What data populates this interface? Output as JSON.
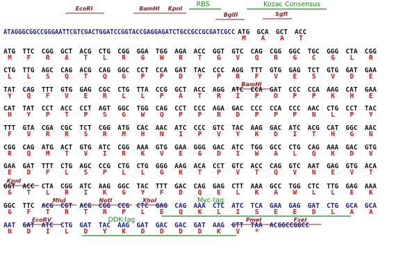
{
  "lines": [
    {
      "leader": "ATAGGGCGGCCGGGAATTCGTCGACTGGATCCGGTACCGAGGAGATCTGCCGCCGCGATCGCC",
      "insert": [
        "ATG",
        "GCA",
        "GCT",
        "ACC"
      ],
      "protein": [
        "M",
        "A",
        "A",
        "T"
      ],
      "annotations": [
        "EcoRI",
        "BamHI",
        "KpnI",
        "RBS",
        "BglII",
        "Kozac Consensus",
        "SgfI"
      ]
    },
    {
      "insert": [
        "ATG",
        "TTC",
        "CGG",
        "GCT",
        "ACG",
        "CTG",
        "CGG",
        "GGA",
        "TGG",
        "AGA",
        "ACC",
        "GGT",
        "GTC",
        "CAG",
        "CGG",
        "GGC",
        "TGC",
        "GGG",
        "CTA",
        "CGG"
      ],
      "protein": [
        "M",
        "F",
        "R",
        "A",
        "T",
        "L",
        "R",
        "G",
        "W",
        "R",
        "T",
        "G",
        "V",
        "Q",
        "R",
        "G",
        "C",
        "G",
        "L",
        "R"
      ]
    },
    {
      "insert": [
        "CTG",
        "TTG",
        "AGC",
        "CAG",
        "ACG",
        "CAG",
        "GGC",
        "CCT",
        "CCA",
        "GAT",
        "TAC",
        "CCC",
        "AGG",
        "TTT",
        "GTG",
        "GAG",
        "TCT",
        "GTG",
        "GAT",
        "GAA"
      ],
      "protein": [
        "L",
        "L",
        "S",
        "Q",
        "T",
        "Q",
        "G",
        "P",
        "P",
        "D",
        "Y",
        "P",
        "R",
        "F",
        "V",
        "E",
        "S",
        "V",
        "D",
        "E"
      ]
    },
    {
      "insert": [
        "TAT",
        "CAG",
        "TTT",
        "GTG",
        "GAG",
        "CGC",
        "CTG",
        "TTA",
        "CCG",
        "GCT",
        "ACC",
        "AGG",
        "ATC",
        "CCA",
        "GAT",
        "CCC",
        "CCA",
        "AAG",
        "CAT",
        "GAA"
      ],
      "protein": [
        "Y",
        "Q",
        "F",
        "V",
        "E",
        "R",
        "L",
        "L",
        "P",
        "A",
        "T",
        "R",
        "I",
        "P",
        "D",
        "P",
        "P",
        "K",
        "H",
        "E"
      ],
      "annotations": [
        "BamHI"
      ]
    },
    {
      "insert": [
        "CAT",
        "TAT",
        "CCT",
        "ACC",
        "CCT",
        "AGT",
        "GGC",
        "TGG",
        "CAG",
        "CCT",
        "CCC",
        "AGA",
        "GAC",
        "CCC",
        "CCA",
        "CCC",
        "AAC",
        "CTG",
        "CCT",
        "TAC"
      ],
      "protein": [
        "H",
        "Y",
        "P",
        "T",
        "P",
        "S",
        "G",
        "W",
        "Q",
        "P",
        "P",
        "R",
        "D",
        "P",
        "P",
        "P",
        "N",
        "L",
        "P",
        "Y"
      ]
    },
    {
      "insert": [
        "TTT",
        "GTA",
        "CGA",
        "CGC",
        "TCT",
        "CGG",
        "ATG",
        "CAC",
        "AAC",
        "ATC",
        "CCC",
        "GTC",
        "TAC",
        "AAG",
        "GAC",
        "ATC",
        "ACG",
        "CAT",
        "GGC",
        "AAC"
      ],
      "protein": [
        "F",
        "V",
        "R",
        "R",
        "S",
        "R",
        "M",
        "H",
        "N",
        "I",
        "P",
        "V",
        "Y",
        "K",
        "D",
        "I",
        "T",
        "H",
        "G",
        "N"
      ]
    },
    {
      "insert": [
        "CGG",
        "CAG",
        "ATG",
        "ACT",
        "GTG",
        "ATC",
        "CGG",
        "AAA",
        "GTG",
        "GAA",
        "GGG",
        "GAC",
        "ATC",
        "TGG",
        "GCC",
        "CTG",
        "CAG",
        "AAA",
        "GAC",
        "GTG"
      ],
      "protein": [
        "R",
        "Q",
        "M",
        "T",
        "V",
        "I",
        "R",
        "K",
        "V",
        "E",
        "G",
        "D",
        "I",
        "W",
        "A",
        "L",
        "Q",
        "K",
        "D",
        "V"
      ]
    },
    {
      "insert": [
        "GAA",
        "GAT",
        "TTT",
        "CTG",
        "AGC",
        "CCG",
        "CTG",
        "CTG",
        "GGG",
        "AAG",
        "ACA",
        "CCT",
        "GTC",
        "ACC",
        "CAG",
        "GTC",
        "AAT",
        "GAG",
        "GTG",
        "ACA"
      ],
      "protein": [
        "E",
        "D",
        "F",
        "L",
        "S",
        "P",
        "L",
        "L",
        "G",
        "K",
        "T",
        "P",
        "V",
        "T",
        "Q",
        "V",
        "N",
        "E",
        "V",
        "T"
      ]
    },
    {
      "insert": [
        "GGT",
        "ACC",
        "CTA",
        "CGG",
        "ATC",
        "AAG",
        "GGC",
        "TAC",
        "TTT",
        "GAC",
        "CAG",
        "GAG",
        "CTT",
        "AAA",
        "GCC",
        "TGG",
        "CTC",
        "TTG",
        "GAG",
        "AAA"
      ],
      "protein": [
        "G",
        "T",
        "L",
        "R",
        "I",
        "K",
        "G",
        "Y",
        "F",
        "D",
        "Q",
        "E",
        "L",
        "K",
        "A",
        "W",
        "L",
        "L",
        "E",
        "K"
      ],
      "annotations": [
        "KpnI"
      ]
    },
    {
      "insert": [
        "GGC",
        "TTC"
      ],
      "vector": [
        "ACG",
        "CGT",
        "ACG",
        "CGG",
        "CCG",
        "CTC",
        "GAG",
        "CAG",
        "AAA",
        "CTC",
        "ATC",
        "TCA",
        "GAA",
        "GAG",
        "GAT",
        "CTG",
        "GCA",
        "GCA"
      ],
      "protein": [
        "G",
        "F",
        "T",
        "R",
        "T",
        "R",
        "P",
        "L",
        "E",
        "Q",
        "K",
        "L",
        "I",
        "S",
        "E",
        "E",
        "D",
        "L",
        "A",
        "A"
      ],
      "annotations": [
        "MluI",
        "NotI",
        "XhoI",
        "Myc-tag"
      ]
    },
    {
      "vector": [
        "AAT",
        "GAT",
        "ATC",
        "CTG",
        "GAT",
        "TAC",
        "AAG",
        "GAT",
        "GAC",
        "GAC",
        "GAT",
        "AAG",
        "GTT",
        "TAA"
      ],
      "trailer": "ACGGCCGGCC",
      "protein": [
        "N",
        "D",
        "I",
        "L",
        "D",
        "Y",
        "K",
        "D",
        "D",
        "D",
        "D",
        "K",
        "V",
        "*"
      ],
      "annotations": [
        "EcoRV",
        "DDK-tag",
        "PmeI",
        "FseI"
      ]
    }
  ]
}
